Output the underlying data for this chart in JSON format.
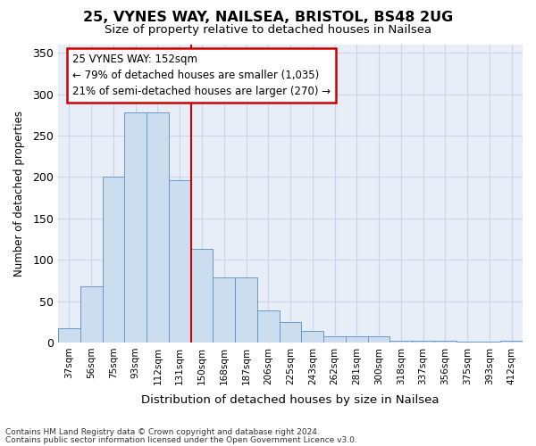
{
  "title_line1": "25, VYNES WAY, NAILSEA, BRISTOL, BS48 2UG",
  "title_line2": "Size of property relative to detached houses in Nailsea",
  "xlabel": "Distribution of detached houses by size in Nailsea",
  "ylabel": "Number of detached properties",
  "categories": [
    "37sqm",
    "56sqm",
    "75sqm",
    "93sqm",
    "112sqm",
    "131sqm",
    "150sqm",
    "168sqm",
    "187sqm",
    "206sqm",
    "225sqm",
    "243sqm",
    "262sqm",
    "281sqm",
    "300sqm",
    "318sqm",
    "337sqm",
    "356sqm",
    "375sqm",
    "393sqm",
    "412sqm"
  ],
  "values": [
    17,
    68,
    200,
    278,
    278,
    196,
    113,
    79,
    79,
    39,
    25,
    14,
    7,
    7,
    7,
    2,
    2,
    2,
    1,
    1,
    2
  ],
  "bar_color": "#ccddf0",
  "bar_edge_color": "#6699cc",
  "vline_color": "#cc0000",
  "annotation_title": "25 VYNES WAY: 152sqm",
  "annotation_line2": "← 79% of detached houses are smaller (1,035)",
  "annotation_line3": "21% of semi-detached houses are larger (270) →",
  "annotation_box_facecolor": "#ffffff",
  "annotation_box_edgecolor": "#cc0000",
  "grid_color": "#c8d4e8",
  "background_color": "#ffffff",
  "plot_bg_color": "#e8eef8",
  "footer_line1": "Contains HM Land Registry data © Crown copyright and database right 2024.",
  "footer_line2": "Contains public sector information licensed under the Open Government Licence v3.0.",
  "ylim": [
    0,
    360
  ],
  "yticks": [
    0,
    50,
    100,
    150,
    200,
    250,
    300,
    350
  ],
  "vline_x_index": 6
}
